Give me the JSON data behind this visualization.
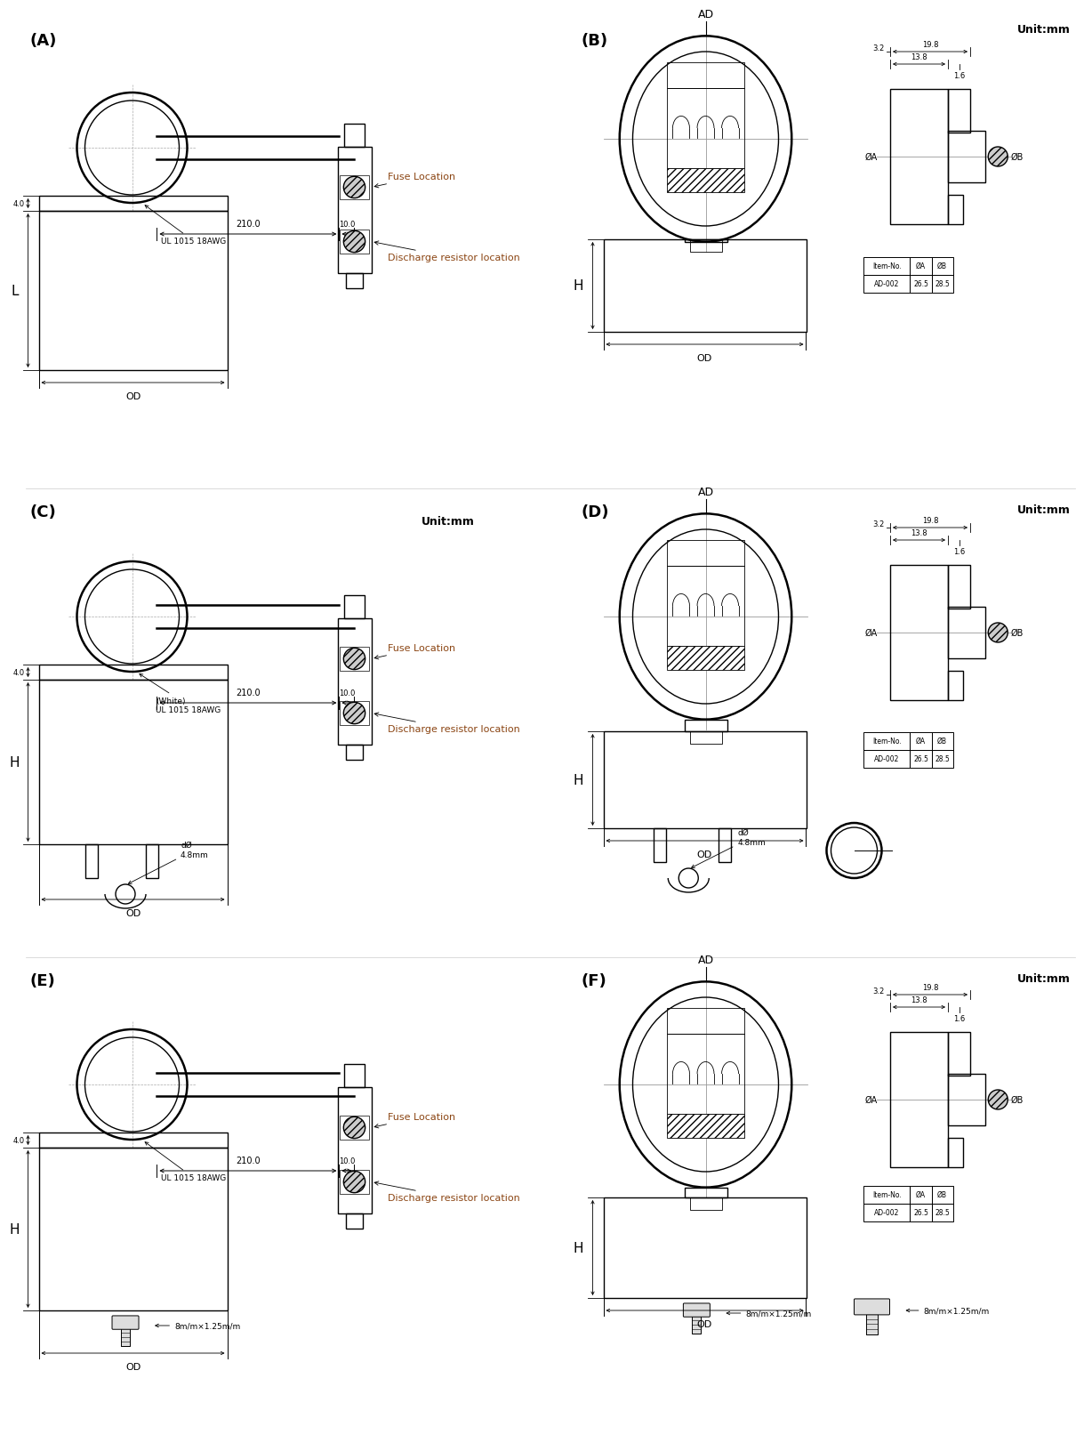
{
  "bg_color": "#ffffff",
  "text_color": "#000000",
  "blue_color": "#8B4513",
  "title_A": "(A)",
  "title_B": "(B)",
  "title_C": "(C)",
  "title_D": "(D)",
  "title_E": "(E)",
  "title_F": "(F)",
  "unit_mm": "Unit:mm",
  "dim_210": "210.0",
  "dim_10": "10.0",
  "dim_4": "4.0",
  "label_L": "L",
  "label_H": "H",
  "label_OD": "OD",
  "label_AD": "AD",
  "label_198": "19.8",
  "label_138": "13.8",
  "label_32": "3.2",
  "label_16": "1.6",
  "label_phiA": "ØA",
  "label_phiB": "ØB",
  "label_item_no": "Item-No.",
  "label_ad002": "AD-002",
  "label_265": "26.5",
  "label_285": "28.5",
  "label_UL": "UL 1015 18AWG",
  "label_UL_white": "(White)\nUL 1015 18AWG",
  "label_fuse": "Fuse Location",
  "label_discharge": "Discharge resistor location",
  "label_screw": "8m/m×1.25m/m"
}
